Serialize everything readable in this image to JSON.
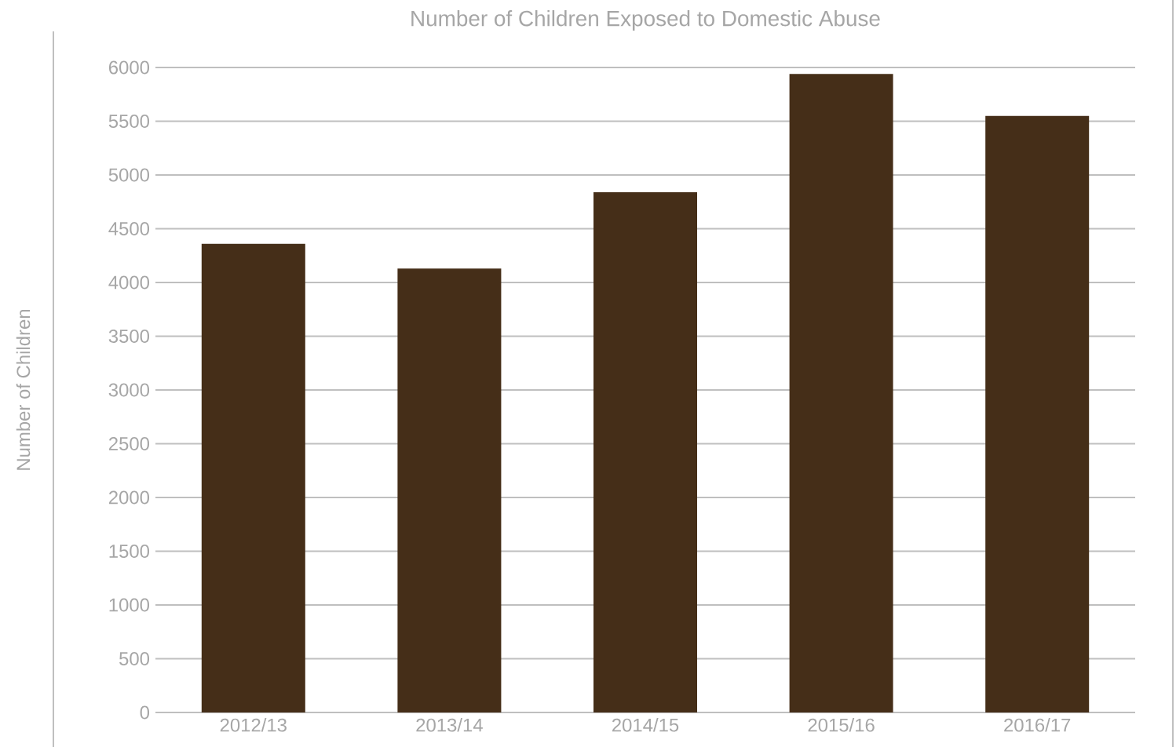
{
  "chart_data": {
    "type": "bar",
    "title": "Number of Children Exposed to Domestic Abuse",
    "ylabel": "Number of Children",
    "categories": [
      "2012/13",
      "2013/14",
      "2014/15",
      "2015/16",
      "2016/17"
    ],
    "values": [
      4360,
      4130,
      4840,
      5940,
      5550
    ],
    "color": "#452e18",
    "ylim": [
      0,
      6000
    ],
    "yticks": [
      0,
      500,
      1000,
      1500,
      2000,
      2500,
      3000,
      3500,
      4000,
      4500,
      5000,
      5500,
      6000
    ],
    "grid": "y"
  }
}
